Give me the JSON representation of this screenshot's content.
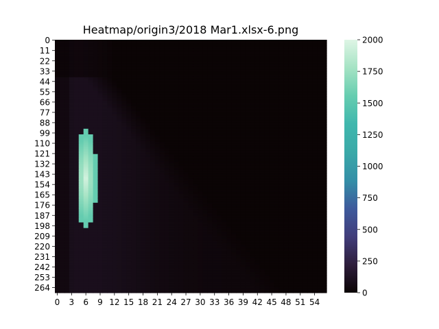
{
  "chart_data": {
    "type": "heatmap",
    "title": "Heatmap/origin3/2018 Mar1.xlsx-6.png",
    "xlabel": "",
    "ylabel": "",
    "x_count": 57,
    "y_count": 270,
    "x_tick_labels": [
      "0",
      "3",
      "6",
      "9",
      "12",
      "15",
      "18",
      "21",
      "24",
      "27",
      "30",
      "33",
      "36",
      "39",
      "42",
      "45",
      "48",
      "51",
      "54"
    ],
    "y_tick_labels": [
      "0",
      "11",
      "22",
      "33",
      "44",
      "55",
      "66",
      "77",
      "88",
      "99",
      "110",
      "121",
      "132",
      "143",
      "154",
      "165",
      "176",
      "187",
      "198",
      "209",
      "220",
      "231",
      "242",
      "253",
      "264"
    ],
    "value_range": [
      0,
      2000
    ],
    "colorbar_ticks": [
      "0",
      "250",
      "500",
      "750",
      "1000",
      "1250",
      "1500",
      "1750",
      "2000"
    ],
    "colormap": "mako",
    "colormap_stops": [
      "#0b0405",
      "#2e1e3c",
      "#413d7b",
      "#3e5a9c",
      "#348fa7",
      "#3aa9a8",
      "#40b7ad",
      "#66cdb0",
      "#a5e3c4",
      "#def5e5"
    ],
    "hotspot": {
      "x_range": [
        5,
        9
      ],
      "y_range": [
        95,
        200
      ],
      "peak_x": 6.5,
      "peak_y": 148,
      "peak_value": 1950,
      "edge_value": 1550
    },
    "background": {
      "description_value_range": [
        0,
        150
      ],
      "diagonal_boundary": "values near 0 above a line from (x=12,y=40) to (x=48,y=270)"
    }
  }
}
